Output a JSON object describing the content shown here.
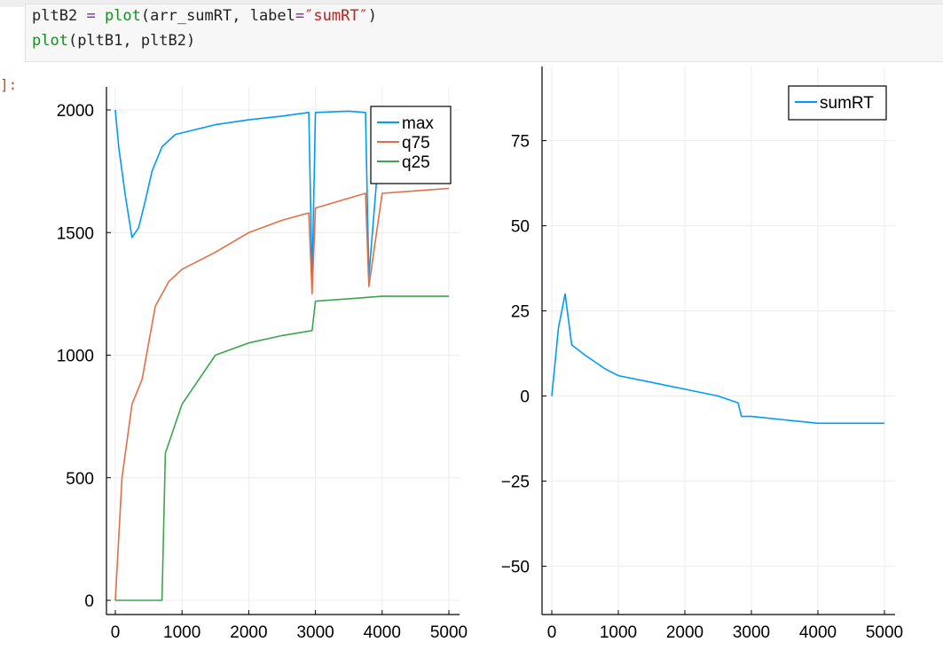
{
  "code": {
    "line1": {
      "var": "pltB2",
      "eq": "=",
      "fn": "plot",
      "args_a": "(arr_sumRT, label",
      "eq2": "=",
      "str": "″sumRT″",
      "close": ")"
    },
    "line2": {
      "fn": "plot",
      "args": "(pltB1, pltB2)"
    }
  },
  "output_prompt": "]:",
  "colors": {
    "series1": "#009af9",
    "series2": "#e26f46",
    "series3": "#3da44d",
    "axis": "#000000",
    "grid": "#ececec"
  },
  "chart_data": [
    {
      "type": "line",
      "xlim": [
        0,
        5000
      ],
      "ylim": [
        0,
        2000
      ],
      "xticks": [
        0,
        1000,
        2000,
        3000,
        4000,
        5000
      ],
      "yticks": [
        0,
        500,
        1000,
        1500,
        2000
      ],
      "xtick_labels": [
        "0",
        "1000",
        "2000",
        "3000",
        "4000",
        "5000"
      ],
      "ytick_labels": [
        "0",
        "500",
        "1000",
        "1500",
        "2000"
      ],
      "grid": true,
      "legend_position": "top-right",
      "series": [
        {
          "name": "max",
          "color": "#009af9",
          "x": [
            0,
            50,
            150,
            250,
            350,
            450,
            550,
            700,
            900,
            1200,
            1500,
            2000,
            2500,
            2900,
            2950,
            3000,
            3500,
            3750,
            3800,
            4000,
            4500,
            5000
          ],
          "y": [
            2000,
            1850,
            1650,
            1480,
            1520,
            1630,
            1750,
            1850,
            1900,
            1920,
            1940,
            1960,
            1975,
            1990,
            1300,
            1990,
            1995,
            1990,
            1320,
            1995,
            2000,
            2000
          ]
        },
        {
          "name": "q75",
          "color": "#e26f46",
          "x": [
            0,
            100,
            250,
            400,
            500,
            600,
            800,
            1000,
            1500,
            2000,
            2500,
            2900,
            2950,
            3000,
            3500,
            3750,
            3800,
            4000,
            4500,
            5000
          ],
          "y": [
            0,
            500,
            800,
            900,
            1050,
            1200,
            1300,
            1350,
            1420,
            1500,
            1550,
            1580,
            1250,
            1600,
            1640,
            1660,
            1280,
            1660,
            1670,
            1680
          ]
        },
        {
          "name": "q25",
          "color": "#3da44d",
          "x": [
            0,
            700,
            750,
            1000,
            1500,
            2000,
            2500,
            2950,
            3000,
            3500,
            4000,
            4500,
            5000
          ],
          "y": [
            0,
            0,
            600,
            800,
            1000,
            1050,
            1080,
            1100,
            1220,
            1230,
            1240,
            1240,
            1240
          ]
        }
      ]
    },
    {
      "type": "line",
      "xlim": [
        0,
        5000
      ],
      "ylim": [
        -60,
        90
      ],
      "xticks": [
        0,
        1000,
        2000,
        3000,
        4000,
        5000
      ],
      "yticks": [
        -50,
        -25,
        0,
        25,
        50,
        75
      ],
      "xtick_labels": [
        "0",
        "1000",
        "2000",
        "3000",
        "4000",
        "5000"
      ],
      "ytick_labels": [
        "−50",
        "−25",
        "0",
        "25",
        "50",
        "75"
      ],
      "grid": true,
      "legend_position": "top-right",
      "series": [
        {
          "name": "sumRT",
          "color": "#009af9",
          "x": [
            0,
            50,
            100,
            150,
            200,
            300,
            500,
            800,
            1000,
            1500,
            2000,
            2500,
            2800,
            2850,
            3000,
            3500,
            4000,
            4500,
            5000
          ],
          "y": [
            0,
            10,
            20,
            25,
            30,
            15,
            12,
            8,
            6,
            4,
            2,
            0,
            -2,
            -6,
            -6,
            -7,
            -8,
            -8,
            -8
          ]
        }
      ]
    }
  ]
}
